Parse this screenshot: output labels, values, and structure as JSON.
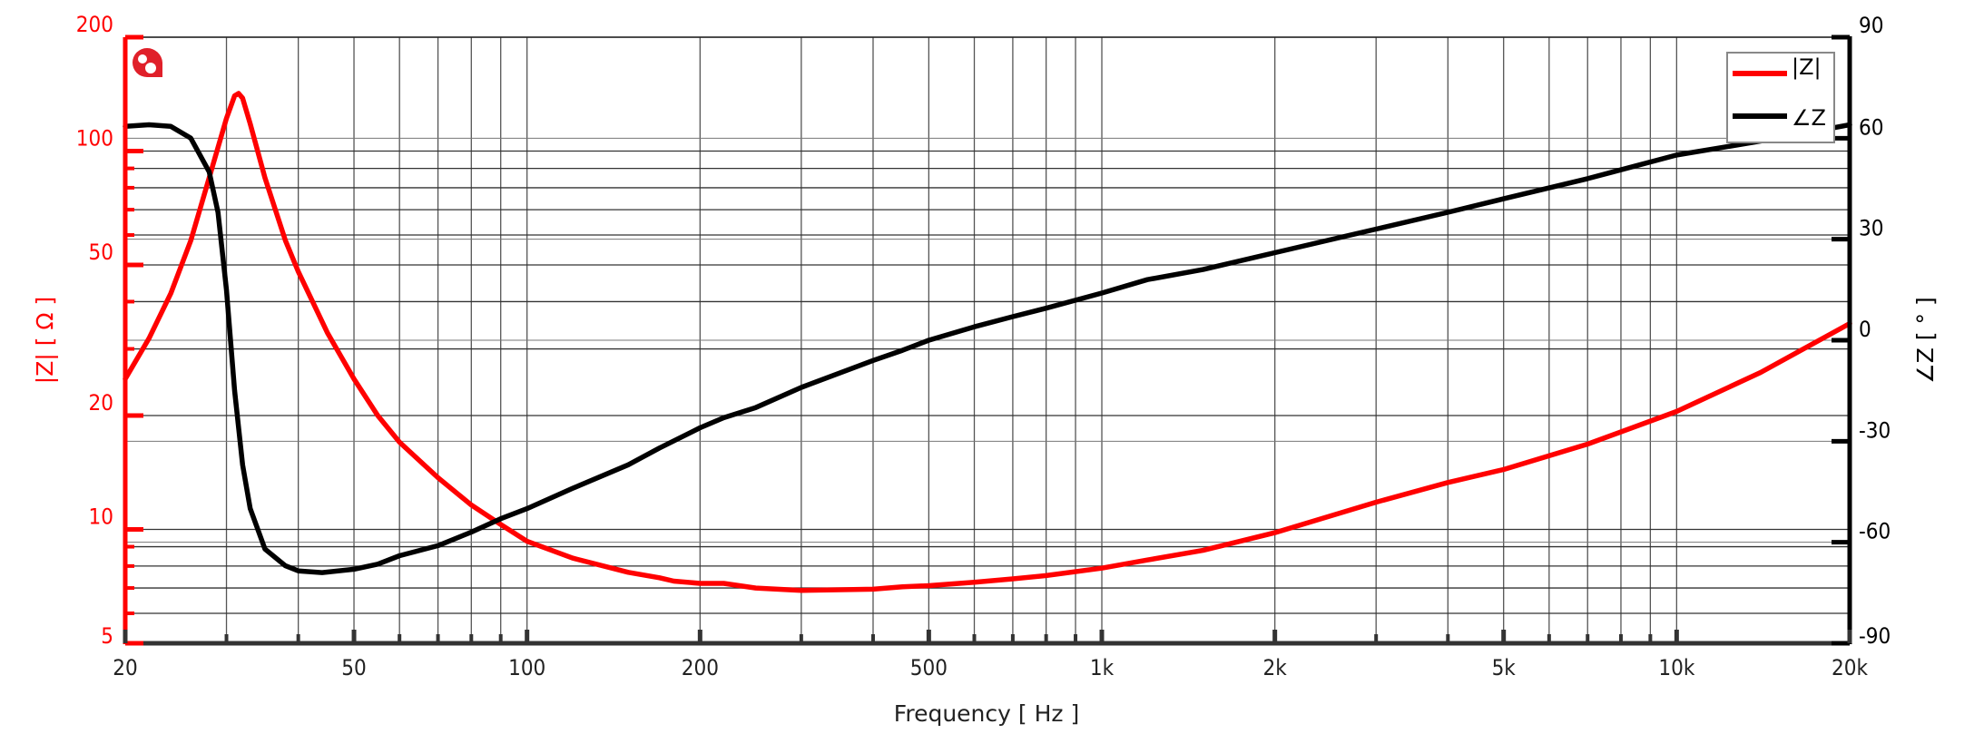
{
  "chart_data": {
    "type": "line",
    "title": "",
    "xlabel": "Frequency [ Hz ]",
    "ylabel_left": "|Z| [ Ω ]",
    "ylabel_right": "∠Z [ ° ]",
    "x_scale": "log",
    "xlim": [
      20,
      20000
    ],
    "ylim_left": [
      5,
      200
    ],
    "ylim_left_scale": "log",
    "ylim_right": [
      -90,
      90
    ],
    "x_ticks": [
      {
        "value": 20,
        "label": "20"
      },
      {
        "value": 50,
        "label": "50"
      },
      {
        "value": 100,
        "label": "100"
      },
      {
        "value": 200,
        "label": "200"
      },
      {
        "value": 500,
        "label": "500"
      },
      {
        "value": 1000,
        "label": "1k"
      },
      {
        "value": 2000,
        "label": "2k"
      },
      {
        "value": 5000,
        "label": "5k"
      },
      {
        "value": 10000,
        "label": "10k"
      },
      {
        "value": 20000,
        "label": "20k"
      }
    ],
    "x_minor_grid": [
      30,
      40,
      60,
      70,
      80,
      90,
      300,
      400,
      600,
      700,
      800,
      900,
      3000,
      4000,
      6000,
      7000,
      8000,
      9000
    ],
    "y_left_ticks": [
      {
        "value": 5,
        "label": "5"
      },
      {
        "value": 10,
        "label": "10"
      },
      {
        "value": 20,
        "label": "20"
      },
      {
        "value": 50,
        "label": "50"
      },
      {
        "value": 100,
        "label": "100"
      },
      {
        "value": 200,
        "label": "200"
      }
    ],
    "y_left_minor_grid": [
      6,
      7,
      8,
      9,
      30,
      40,
      60,
      70,
      80,
      90
    ],
    "y_right_ticks": [
      {
        "value": -90,
        "label": "-90"
      },
      {
        "value": -60,
        "label": "-60"
      },
      {
        "value": -30,
        "label": "-30"
      },
      {
        "value": 0,
        "label": "0"
      },
      {
        "value": 30,
        "label": "30"
      },
      {
        "value": 60,
        "label": "60"
      },
      {
        "value": 90,
        "label": "90"
      }
    ],
    "grid": true,
    "legend_position": "upper right",
    "series": [
      {
        "name": "|Z|",
        "axis": "left",
        "color": "#ff0000",
        "x": [
          20,
          22,
          24,
          26,
          28,
          30,
          31,
          31.5,
          32,
          33,
          35,
          38,
          40,
          45,
          50,
          55,
          60,
          70,
          80,
          90,
          100,
          120,
          150,
          170,
          180,
          200,
          220,
          250,
          300,
          400,
          450,
          500,
          600,
          700,
          800,
          1000,
          1200,
          1500,
          2000,
          3000,
          4000,
          5000,
          7000,
          10000,
          14000,
          20000
        ],
        "values": [
          25,
          32,
          42,
          58,
          85,
          122,
          140,
          142,
          138,
          118,
          85,
          58,
          48,
          33,
          25,
          20,
          17,
          13.7,
          11.6,
          10.3,
          9.3,
          8.4,
          7.7,
          7.45,
          7.3,
          7.2,
          7.2,
          7.0,
          6.9,
          6.95,
          7.05,
          7.1,
          7.25,
          7.4,
          7.55,
          7.9,
          8.3,
          8.8,
          9.8,
          11.8,
          13.3,
          14.4,
          16.8,
          20.5,
          26,
          35
        ]
      },
      {
        "name": "∠Z",
        "axis": "right",
        "color": "#000000",
        "x": [
          20,
          22,
          24,
          26,
          28,
          29,
          30,
          31,
          32,
          33,
          35,
          38,
          40,
          44,
          50,
          55,
          60,
          70,
          80,
          90,
          100,
          120,
          150,
          170,
          200,
          220,
          250,
          300,
          400,
          450,
          500,
          600,
          700,
          800,
          1000,
          1200,
          1500,
          2000,
          3000,
          4000,
          5000,
          7000,
          10000,
          15000,
          20000
        ],
        "values": [
          63.5,
          64,
          63.5,
          60,
          50,
          38,
          15,
          -15,
          -37,
          -50,
          -62,
          -67,
          -68.5,
          -69,
          -68,
          -66.5,
          -64,
          -61,
          -57,
          -53,
          -50,
          -44,
          -37,
          -32,
          -26,
          -23,
          -20,
          -14,
          -6,
          -3,
          0,
          4,
          7,
          9.5,
          14,
          18,
          21,
          26,
          33,
          38,
          42,
          48,
          55,
          60,
          64
        ]
      }
    ]
  },
  "logo": {
    "icon": "brand-logo-icon",
    "color": "#e0202a"
  },
  "legend": {
    "items": [
      {
        "label": "|Z|",
        "color": "#ff0000"
      },
      {
        "label": "∠Z",
        "color": "#000000"
      }
    ]
  }
}
